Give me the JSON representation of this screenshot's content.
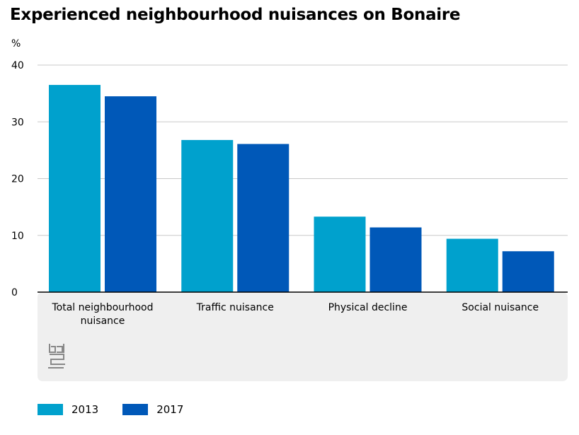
{
  "chart_data": {
    "type": "bar",
    "title": "Experienced neighbourhood nuisances on Bonaire",
    "ylabel": "%",
    "ylim": [
      0,
      40
    ],
    "yticks": [
      0,
      10,
      20,
      30,
      40
    ],
    "grid": true,
    "legend_position": "bottom-left",
    "categories": [
      [
        "Total neighbourhood",
        "nuisance"
      ],
      [
        "Traffic nuisance"
      ],
      [
        "Physical decline"
      ],
      [
        "Social nuisance"
      ]
    ],
    "series": [
      {
        "name": "2013",
        "color": "#00a1cd",
        "values": [
          36.5,
          26.8,
          13.3,
          9.4
        ]
      },
      {
        "name": "2017",
        "color": "#0058b8",
        "values": [
          34.5,
          26.1,
          11.4,
          7.2
        ]
      }
    ]
  },
  "logo": {
    "icon": "cbs-logo-icon",
    "text": "cbs"
  }
}
